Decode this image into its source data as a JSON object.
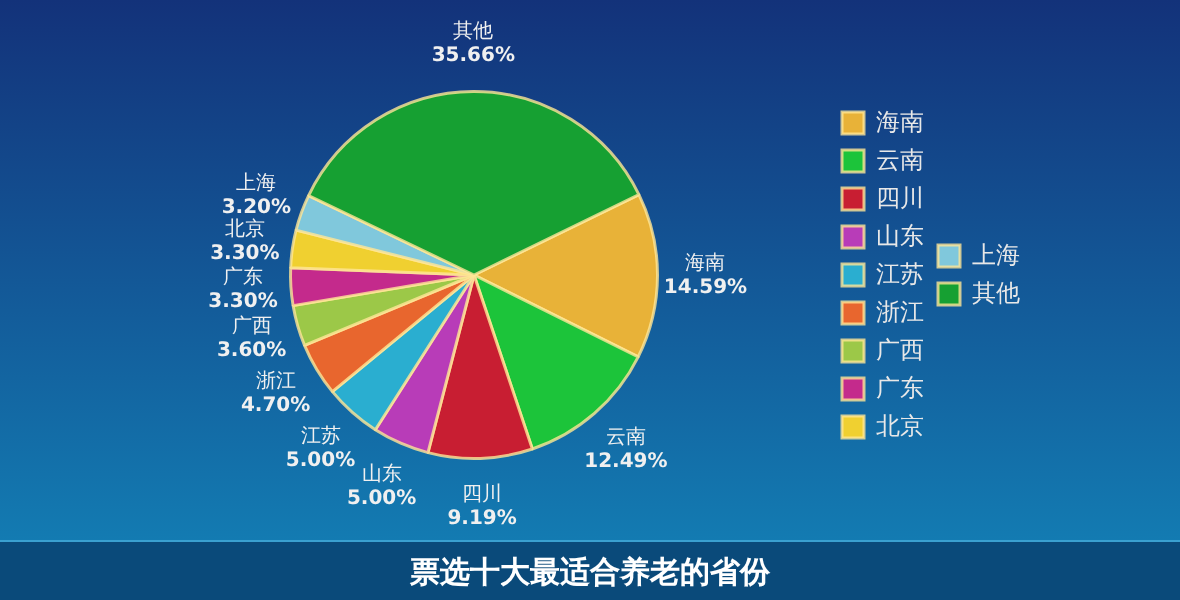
{
  "chart_data": {
    "type": "pie",
    "title": "票选十大最适合养老的省份",
    "categories": [
      "海南",
      "云南",
      "四川",
      "山东",
      "江苏",
      "浙江",
      "广西",
      "广东",
      "北京",
      "上海",
      "其他"
    ],
    "values": [
      14.59,
      12.49,
      9.19,
      5.0,
      5.0,
      4.7,
      3.6,
      3.3,
      3.3,
      3.2,
      35.66
    ],
    "value_labels": [
      "14.59%",
      "12.49%",
      "9.19%",
      "5.00%",
      "5.00%",
      "4.70%",
      "3.60%",
      "3.30%",
      "3.30%",
      "3.20%",
      "35.66%"
    ],
    "colors": [
      "#e8b238",
      "#1cc43a",
      "#c81e32",
      "#b83cb8",
      "#2aaed0",
      "#e8662e",
      "#9cc848",
      "#c42a8c",
      "#f0d030",
      "#80c8dc",
      "#16a032"
    ],
    "legend": "right"
  }
}
